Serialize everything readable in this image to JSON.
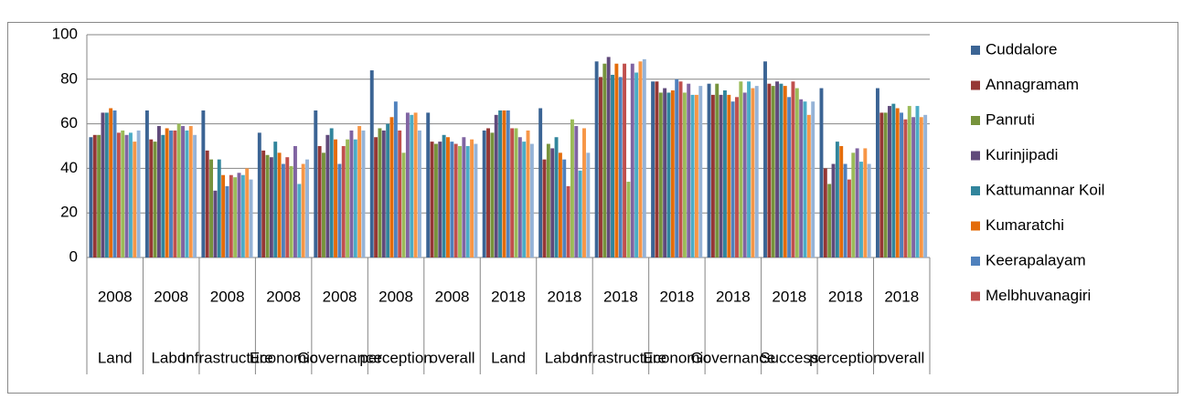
{
  "chart_data": {
    "type": "bar",
    "categories": [
      "Land",
      "Labor",
      "Infrastructure",
      "Economic",
      "Governance",
      "perception",
      "overall",
      "Land",
      "Labor",
      "Infrastructure",
      "Economic",
      "Governance",
      "Success",
      "perception",
      "overall"
    ],
    "category_groups": [
      "2008",
      "2008",
      "2008",
      "2008",
      "2008",
      "2008",
      "2008",
      "2018",
      "2018",
      "2018",
      "2018",
      "2018",
      "2018",
      "2018",
      "2018"
    ],
    "ylim": [
      0,
      100
    ],
    "yticks": [
      0,
      20,
      40,
      60,
      80,
      100
    ],
    "series": [
      {
        "name": "Cuddalore",
        "color": "#3b6494",
        "values": [
          54,
          66,
          66,
          56,
          66,
          84,
          65,
          57,
          67,
          88,
          79,
          78,
          88,
          76,
          76
        ]
      },
      {
        "name": "Annagramam",
        "color": "#953735",
        "values": [
          55,
          53,
          48,
          48,
          50,
          54,
          52,
          58,
          44,
          81,
          79,
          73,
          78,
          40,
          65
        ]
      },
      {
        "name": "Panruti",
        "color": "#77933c",
        "values": [
          55,
          52,
          44,
          46,
          47,
          58,
          51,
          56,
          51,
          87,
          74,
          78,
          77,
          33,
          65
        ]
      },
      {
        "name": "Kurinjipadi",
        "color": "#604a7b",
        "values": [
          65,
          59,
          30,
          45,
          55,
          57,
          52,
          64,
          49,
          90,
          76,
          73,
          79,
          42,
          68
        ]
      },
      {
        "name": "Kattumannar Koil",
        "color": "#31859c",
        "values": [
          65,
          55,
          44,
          52,
          58,
          60,
          55,
          66,
          54,
          82,
          74,
          75,
          78,
          52,
          69
        ]
      },
      {
        "name": "Kumaratchi",
        "color": "#e46c0a",
        "values": [
          67,
          58,
          37,
          47,
          53,
          63,
          54,
          66,
          47,
          87,
          75,
          73,
          77,
          50,
          67
        ]
      },
      {
        "name": "Keerapalayam",
        "color": "#4f81bd",
        "values": [
          66,
          57,
          32,
          42,
          42,
          70,
          52,
          66,
          44,
          81,
          80,
          70,
          72,
          42,
          65
        ]
      },
      {
        "name": "Melbhuvanagiri",
        "color": "#c0504d",
        "values": [
          56,
          57,
          37,
          45,
          50,
          57,
          51,
          58,
          32,
          87,
          79,
          72,
          79,
          35,
          62
        ]
      },
      {
        "name": null,
        "color": "#9bbb59",
        "values": [
          57,
          60,
          36,
          41,
          53,
          47,
          50,
          58,
          62,
          34,
          74,
          79,
          76,
          47,
          68
        ]
      },
      {
        "name": null,
        "color": "#8064a2",
        "values": [
          55,
          59,
          38,
          50,
          57,
          65,
          54,
          54,
          59,
          87,
          78,
          74,
          71,
          49,
          63
        ]
      },
      {
        "name": null,
        "color": "#4bacc6",
        "values": [
          56,
          57,
          37,
          33,
          53,
          64,
          50,
          52,
          39,
          83,
          73,
          79,
          70,
          43,
          68
        ]
      },
      {
        "name": null,
        "color": "#f79646",
        "values": [
          52,
          59,
          40,
          42,
          59,
          65,
          53,
          57,
          58,
          88,
          73,
          76,
          64,
          49,
          63
        ]
      },
      {
        "name": null,
        "color": "#95b3d7",
        "values": [
          57,
          55,
          35,
          44,
          57,
          57,
          51,
          51,
          47,
          89,
          77,
          77,
          70,
          42,
          64
        ]
      }
    ]
  }
}
